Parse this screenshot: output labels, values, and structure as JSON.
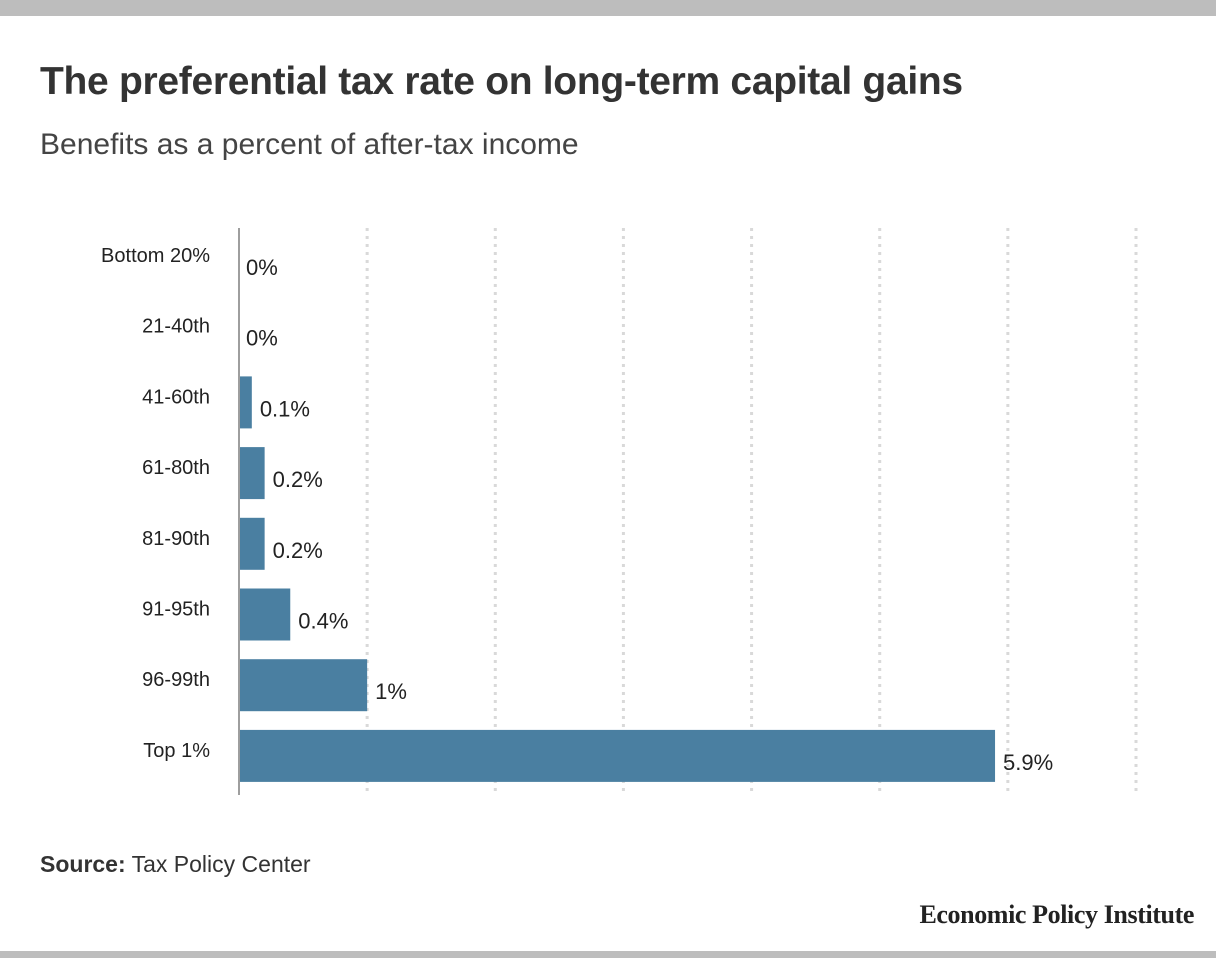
{
  "header": {
    "title": "The preferential tax rate on long-term capital gains",
    "subtitle": "Benefits as a percent of after-tax income"
  },
  "footer": {
    "source_key": "Source:",
    "source_value": " Tax Policy Center",
    "brand": "Economic Policy Institute"
  },
  "colors": {
    "bar": "#4a7fa1",
    "gridline": "#d9d9d9",
    "axis": "#9e9e9e",
    "frame_bars": "#bdbdbd"
  },
  "chart_data": {
    "type": "bar",
    "orientation": "horizontal",
    "categories": [
      "Bottom 20%",
      "21-40th",
      "41-60th",
      "61-80th",
      "81-90th",
      "91-95th",
      "96-99th",
      "Top 1%"
    ],
    "values": [
      0,
      0,
      0.1,
      0.2,
      0.2,
      0.4,
      1,
      5.9
    ],
    "value_labels": [
      "0%",
      "0%",
      "0.1%",
      "0.2%",
      "0.2%",
      "0.4%",
      "1%",
      "5.9%"
    ],
    "title": "The preferential tax rate on long-term capital gains",
    "subtitle": "Benefits as a percent of after-tax income",
    "xlim": [
      0,
      7
    ],
    "grid": true,
    "gridline_values": [
      1,
      2,
      3,
      4,
      5,
      6,
      7
    ],
    "show_tick_labels": false
  }
}
